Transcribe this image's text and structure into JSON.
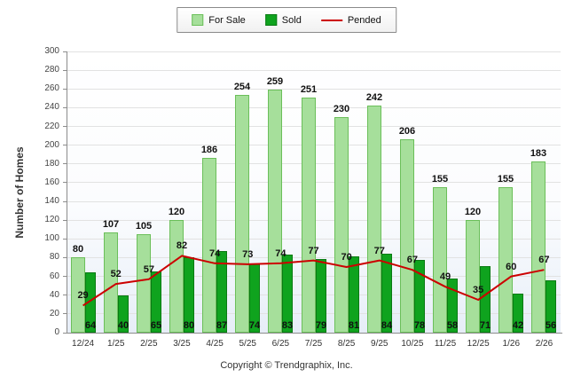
{
  "legend": {
    "for_sale": "For Sale",
    "sold": "Sold",
    "pended": "Pended"
  },
  "footer_text": "Copyright © Trendgraphix, Inc.",
  "colors": {
    "for_sale_fill": "#a6df9b",
    "for_sale_border": "#6bbf5a",
    "sold_fill": "#0fa31e",
    "sold_border": "#0a7a14",
    "pended_line": "#cc0000",
    "grid": "#e2e2e2",
    "axis": "#8c8c8c"
  },
  "chart_data": {
    "type": "bar",
    "title": "",
    "xlabel": "",
    "ylabel": "Number of Homes",
    "ylim": [
      0,
      300
    ],
    "ytick_step": 20,
    "grid": true,
    "legend_position": "top",
    "categories": [
      "12/24",
      "1/25",
      "2/25",
      "3/25",
      "4/25",
      "5/25",
      "6/25",
      "7/25",
      "8/25",
      "9/25",
      "10/25",
      "11/25",
      "12/25",
      "1/26",
      "2/26"
    ],
    "series": [
      {
        "name": "For Sale",
        "render": "bar",
        "values": [
          80,
          107,
          105,
          120,
          186,
          254,
          259,
          251,
          230,
          242,
          206,
          155,
          120,
          155,
          183
        ]
      },
      {
        "name": "Sold",
        "render": "bar",
        "values": [
          64,
          40,
          65,
          80,
          87,
          74,
          83,
          79,
          81,
          84,
          78,
          58,
          71,
          42,
          56
        ]
      },
      {
        "name": "Pended",
        "render": "line",
        "values": [
          29,
          52,
          57,
          82,
          74,
          73,
          74,
          77,
          70,
          77,
          67,
          49,
          35,
          60,
          67
        ]
      }
    ]
  }
}
